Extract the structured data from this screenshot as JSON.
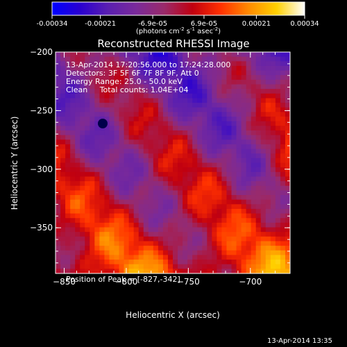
{
  "colorbar": {
    "tick_labels": [
      "-0.00034",
      "-0.00021",
      "-6.9e-05",
      "6.9e-05",
      "0.00021",
      "0.00034"
    ],
    "tick_values": [
      -0.00034,
      -0.00021,
      -6.9e-05,
      6.9e-05,
      0.00021,
      0.00034
    ],
    "range": [
      -0.00034,
      0.00034
    ],
    "units_main": "(photons cm",
    "units_sup1": "-2",
    "units_mid": " s",
    "units_sup2": "-1",
    "units_mid2": " asec",
    "units_sup3": "-2",
    "units_end": ")",
    "stops": [
      "#0000ff",
      "#2a00d0",
      "#5a1fb0",
      "#7a2a9a",
      "#9a2a6a",
      "#c00010",
      "#ff3000",
      "#ff8a00",
      "#ffd000",
      "#ffffff"
    ]
  },
  "chart_data": {
    "type": "heatmap",
    "title": "Reconstructed RHESSI Image",
    "xlabel": "Heliocentric X (arcsec)",
    "ylabel": "Heliocentric Y (arcsec)",
    "xlim": [
      -857,
      -668
    ],
    "ylim": [
      -389,
      -200
    ],
    "xticks": [
      -850,
      -800,
      -750,
      -700
    ],
    "yticks": [
      -200,
      -250,
      -300,
      -350
    ],
    "colorscale": "red-temperature with blue negative",
    "peak": {
      "x": -827,
      "y": -342
    },
    "annotations": [
      "13-Apr-2014 17:20:56.000 to 17:24:28.000",
      "Detectors: 3F 5F 6F 7F 8F 9F, Att 0",
      "Energy Range: 25.0 - 50.0 keV",
      "Clean     Total counts: 1.04E+04"
    ],
    "peak_label": "Position of Peak = [-827,-342]",
    "timestamp": "13-Apr-2014 13:35"
  },
  "colors": {
    "background": "#000000",
    "axes": "#ffffff",
    "text": "#ffffff"
  }
}
